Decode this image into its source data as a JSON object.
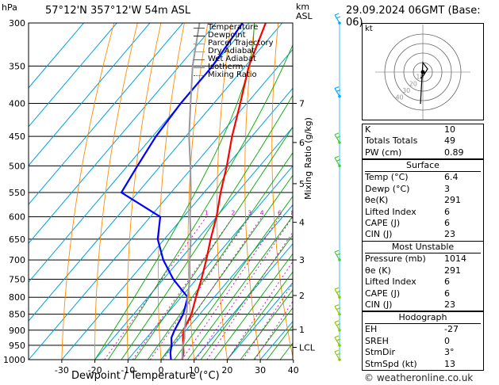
{
  "header": {
    "pressure_unit": "hPa",
    "location": "57°12'N  357°12'W  54m  ASL",
    "km_label": "km",
    "asl_label": "ASL",
    "datetime": "29.09.2024  06GMT  (Base: 06)"
  },
  "xlabel": "Dewpoint / Temperature (°C)",
  "mixing_ratio_label": "Mixing Ratio (g/kg)",
  "copyright": "© weatheronline.co.uk",
  "legend": [
    {
      "label": "Temperature",
      "color": "#ff0000"
    },
    {
      "label": "Dewpoint",
      "color": "#0000ff"
    },
    {
      "label": "Parcel Trajectory",
      "color": "#999999"
    },
    {
      "label": "Dry Adiabat",
      "color": "#ff8c00"
    },
    {
      "label": "Wet Adiabat",
      "color": "#00aa00"
    },
    {
      "label": "Isotherm",
      "color": "#00a0e0"
    },
    {
      "label": "Mixing Ratio",
      "color": "#d000d0"
    }
  ],
  "hodograph_label": "kt",
  "hodograph_rings": [
    "10",
    "20",
    "30",
    "40"
  ],
  "indices": [
    {
      "name": "K",
      "value": "10"
    },
    {
      "name": "Totals Totals",
      "value": "49"
    },
    {
      "name": "PW (cm)",
      "value": "0.89"
    }
  ],
  "surface": {
    "title": "Surface",
    "rows": [
      {
        "name": "Temp (°C)",
        "value": "6.4"
      },
      {
        "name": "Dewp (°C)",
        "value": "3"
      },
      {
        "name": "θe(K)",
        "value": "291"
      },
      {
        "name": "Lifted Index",
        "value": "6"
      },
      {
        "name": "CAPE (J)",
        "value": "6"
      },
      {
        "name": "CIN (J)",
        "value": "23"
      }
    ]
  },
  "most_unstable": {
    "title": "Most Unstable",
    "rows": [
      {
        "name": "Pressure (mb)",
        "value": "1014"
      },
      {
        "name": "θe (K)",
        "value": "291"
      },
      {
        "name": "Lifted Index",
        "value": "6"
      },
      {
        "name": "CAPE (J)",
        "value": "6"
      },
      {
        "name": "CIN (J)",
        "value": "23"
      }
    ]
  },
  "hodograph_table": {
    "title": "Hodograph",
    "rows": [
      {
        "name": "EH",
        "value": "-27"
      },
      {
        "name": "SREH",
        "value": "0"
      },
      {
        "name": "StmDir",
        "value": "3°"
      },
      {
        "name": "StmSpd (kt)",
        "value": "13"
      }
    ]
  },
  "chart_data": {
    "type": "line",
    "xlabel": "Dewpoint / Temperature (°C)",
    "ylabel": "hPa",
    "x_ticks": [
      -30,
      -20,
      -10,
      0,
      10,
      20,
      30,
      40
    ],
    "pressure_levels": [
      300,
      350,
      400,
      450,
      500,
      550,
      600,
      650,
      700,
      750,
      800,
      850,
      900,
      950,
      1000
    ],
    "height_ticks_km": [
      {
        "label": "7",
        "p": 400
      },
      {
        "label": "6",
        "p": 460
      },
      {
        "label": "5",
        "p": 533
      },
      {
        "label": "4",
        "p": 612
      },
      {
        "label": "3",
        "p": 700
      },
      {
        "label": "2",
        "p": 795
      },
      {
        "label": "1",
        "p": 898
      },
      {
        "label": "LCL",
        "p": 957
      }
    ],
    "mixing_ratio_ticks": [
      "1",
      "2",
      "3",
      "4",
      "6",
      "8",
      "10",
      "15",
      "20",
      "25"
    ],
    "series": [
      {
        "name": "Temperature",
        "color": "#ff0000",
        "points": [
          [
            6.4,
            1000
          ],
          [
            5.0,
            975
          ],
          [
            3.0,
            950
          ],
          [
            1.0,
            925
          ],
          [
            -0.8,
            900
          ],
          [
            -2.5,
            850
          ],
          [
            -5.5,
            800
          ],
          [
            -8.5,
            750
          ],
          [
            -12,
            700
          ],
          [
            -16,
            650
          ],
          [
            -20,
            600
          ],
          [
            -25,
            550
          ],
          [
            -30,
            500
          ],
          [
            -36,
            450
          ],
          [
            -42,
            400
          ],
          [
            -49,
            350
          ],
          [
            -55,
            300
          ]
        ]
      },
      {
        "name": "Dewpoint",
        "color": "#0000ff",
        "points": [
          [
            3,
            1000
          ],
          [
            1,
            975
          ],
          [
            -0.5,
            950
          ],
          [
            -2.5,
            925
          ],
          [
            -3.5,
            900
          ],
          [
            -5,
            850
          ],
          [
            -8,
            800
          ],
          [
            -17,
            750
          ],
          [
            -25,
            700
          ],
          [
            -32,
            650
          ],
          [
            -37,
            600
          ],
          [
            -55,
            550
          ],
          [
            -57,
            500
          ],
          [
            -59,
            450
          ],
          [
            -60,
            400
          ],
          [
            -60,
            350
          ],
          [
            -62,
            300
          ]
        ]
      },
      {
        "name": "Parcel Trajectory",
        "color": "#999999",
        "points": [
          [
            6.4,
            1000
          ],
          [
            3.6,
            960
          ],
          [
            1.5,
            925
          ],
          [
            -0.5,
            900
          ],
          [
            -4,
            850
          ],
          [
            -8,
            800
          ],
          [
            -12,
            750
          ],
          [
            -17,
            700
          ],
          [
            -22,
            650
          ],
          [
            -28,
            600
          ],
          [
            -34,
            550
          ],
          [
            -41,
            500
          ],
          [
            -49,
            450
          ],
          [
            -57,
            400
          ],
          [
            -66,
            350
          ],
          [
            -75,
            300
          ]
        ]
      }
    ],
    "wind_barbs_hpa": [
      300,
      390,
      460,
      500,
      700,
      800,
      850,
      900,
      950,
      1000
    ]
  }
}
